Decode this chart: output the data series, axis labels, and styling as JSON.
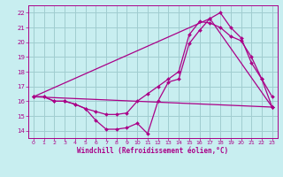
{
  "xlabel": "Windchill (Refroidissement éolien,°C)",
  "bg_color": "#c8eef0",
  "grid_color": "#a0ccd0",
  "line_color": "#aa0088",
  "xlim": [
    -0.5,
    23.5
  ],
  "ylim": [
    13.5,
    22.5
  ],
  "xticks": [
    0,
    1,
    2,
    3,
    4,
    5,
    6,
    7,
    8,
    9,
    10,
    11,
    12,
    13,
    14,
    15,
    16,
    17,
    18,
    19,
    20,
    21,
    22,
    23
  ],
  "yticks": [
    14,
    15,
    16,
    17,
    18,
    19,
    20,
    21,
    22
  ],
  "lines": [
    {
      "x": [
        0,
        1,
        2,
        3,
        4,
        5,
        6,
        7,
        8,
        9,
        10,
        11,
        12,
        13,
        14,
        15,
        16,
        17,
        18,
        19,
        20,
        21,
        22,
        23
      ],
      "y": [
        16.3,
        16.3,
        16.0,
        16.0,
        15.8,
        15.5,
        14.7,
        14.1,
        14.1,
        14.2,
        14.5,
        13.8,
        16.0,
        17.3,
        17.5,
        19.9,
        20.8,
        21.6,
        22.0,
        21.0,
        20.3,
        18.6,
        17.5,
        16.3
      ]
    },
    {
      "x": [
        0,
        1,
        2,
        3,
        4,
        5,
        6,
        7,
        8,
        9,
        10,
        11,
        12,
        13,
        14,
        15,
        16,
        17,
        18,
        19,
        20,
        21,
        22,
        23
      ],
      "y": [
        16.3,
        16.3,
        16.0,
        16.0,
        15.8,
        15.5,
        15.3,
        15.1,
        15.1,
        15.2,
        16.0,
        16.5,
        17.0,
        17.5,
        18.0,
        20.5,
        21.4,
        21.3,
        21.0,
        20.4,
        20.1,
        19.0,
        17.5,
        15.6
      ]
    },
    {
      "x": [
        0,
        23
      ],
      "y": [
        16.3,
        15.6
      ]
    },
    {
      "x": [
        0,
        17,
        23
      ],
      "y": [
        16.3,
        21.6,
        15.6
      ]
    }
  ]
}
